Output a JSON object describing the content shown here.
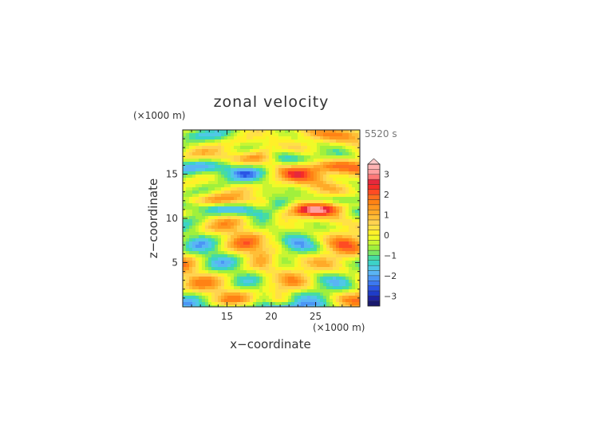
{
  "chart_data": {
    "type": "heatmap",
    "title": "zonal velocity",
    "time_label": "5520 s",
    "xlabel": "x−coordinate",
    "ylabel": "z−coordinate",
    "x_unit": "(×1000 m)",
    "y_unit": "(×1000 m)",
    "xlim": [
      10,
      30
    ],
    "ylim": [
      0,
      20
    ],
    "x_ticks": [
      15,
      20,
      25
    ],
    "y_ticks": [
      5,
      10,
      15
    ],
    "colorbar": {
      "levels": [
        -3.5,
        -3.25,
        -3,
        -2.75,
        -2.5,
        -2.25,
        -2,
        -1.75,
        -1.5,
        -1.25,
        -1,
        -0.75,
        -0.5,
        -0.25,
        0,
        0.25,
        0.5,
        0.75,
        1,
        1.25,
        1.5,
        1.75,
        2,
        2.25,
        2.5,
        2.75,
        3,
        3.25,
        3.5
      ],
      "tick_labels": [
        "3",
        "2",
        "1",
        "0",
        "−1",
        "−2",
        "−3"
      ],
      "colors": [
        "#1a1a6e",
        "#1e22a0",
        "#1e3cc8",
        "#2a55e6",
        "#3c78f0",
        "#4b96f5",
        "#5ab4f5",
        "#50c8e6",
        "#3cd2c8",
        "#46dca0",
        "#78e664",
        "#a0f03c",
        "#c8f532",
        "#f0fa28",
        "#fff028",
        "#ffe146",
        "#ffd250",
        "#ffbe37",
        "#ffaa28",
        "#ff961e",
        "#ff8214",
        "#ff6e1e",
        "#ff4b23",
        "#f52d28",
        "#e6283c",
        "#ff7878",
        "#ffa0a0",
        "#ffb4b4"
      ]
    }
  }
}
